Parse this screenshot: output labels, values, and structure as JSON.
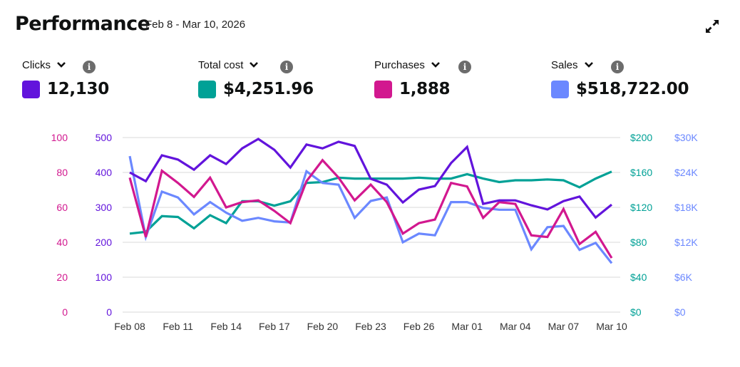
{
  "header": {
    "title": "Performance",
    "date_range": "Feb 8 - Mar 10, 2026"
  },
  "metrics": [
    {
      "label": "Clicks",
      "value": "12,130",
      "color": "#6214DC"
    },
    {
      "label": "Total cost",
      "value": "$4,251.96",
      "color": "#00A196"
    },
    {
      "label": "Purchases",
      "value": "1,888",
      "color": "#D2188F"
    },
    {
      "label": "Sales",
      "value": "$518,722.00",
      "color": "#6B88FF"
    }
  ],
  "icons": {
    "expand": "expand-arrows-icon",
    "dropdown": "chevron-down-icon",
    "info": "info-icon"
  },
  "chart_data": {
    "type": "line",
    "x": [
      "Feb 08",
      "Feb 09",
      "Feb 10",
      "Feb 11",
      "Feb 12",
      "Feb 13",
      "Feb 14",
      "Feb 15",
      "Feb 16",
      "Feb 17",
      "Feb 18",
      "Feb 19",
      "Feb 20",
      "Feb 21",
      "Feb 22",
      "Feb 23",
      "Feb 24",
      "Feb 25",
      "Feb 26",
      "Feb 27",
      "Feb 28",
      "Mar 01",
      "Mar 02",
      "Mar 03",
      "Mar 04",
      "Mar 05",
      "Mar 06",
      "Mar 07",
      "Mar 08",
      "Mar 09",
      "Mar 10"
    ],
    "x_tick_labels": [
      "Feb 08",
      "Feb 11",
      "Feb 14",
      "Feb 17",
      "Feb 20",
      "Feb 23",
      "Feb 26",
      "Mar 01",
      "Mar 04",
      "Mar 07",
      "Mar 10"
    ],
    "grid": true,
    "axes": [
      {
        "side": "left-outer",
        "series": "Purchases",
        "range": [
          0,
          100
        ],
        "ticks": [
          "0",
          "20",
          "40",
          "60",
          "80",
          "100"
        ],
        "color": "#D2188F"
      },
      {
        "side": "left-inner",
        "series": "Clicks",
        "range": [
          0,
          500
        ],
        "ticks": [
          "0",
          "100",
          "200",
          "300",
          "400",
          "500"
        ],
        "color": "#6214DC"
      },
      {
        "side": "right-inner",
        "series": "Total cost",
        "range": [
          0,
          200
        ],
        "ticks": [
          "$0",
          "$40",
          "$80",
          "$120",
          "$160",
          "$200"
        ],
        "color": "#00A196"
      },
      {
        "side": "right-outer",
        "series": "Sales",
        "range": [
          0,
          30000
        ],
        "ticks": [
          "$0",
          "$6K",
          "$12K",
          "$18K",
          "$24K",
          "$30K"
        ],
        "color": "#6B88FF"
      }
    ],
    "series": [
      {
        "name": "Total cost",
        "axis": 2,
        "color": "#00A196",
        "values": [
          90,
          92,
          110,
          109,
          96,
          111,
          102,
          127,
          127,
          122,
          127,
          148,
          149,
          154,
          153,
          153,
          153,
          153,
          154,
          153,
          153,
          158,
          153,
          149,
          151,
          151,
          152,
          151,
          143,
          153,
          161
        ]
      },
      {
        "name": "Sales",
        "axis": 3,
        "color": "#6B88FF",
        "values": [
          26800,
          12900,
          20700,
          19700,
          16800,
          18900,
          17100,
          15700,
          16200,
          15600,
          15400,
          24200,
          22200,
          21900,
          16200,
          19100,
          19700,
          12000,
          13500,
          13200,
          18900,
          18900,
          17900,
          17600,
          17600,
          10800,
          14600,
          14800,
          10700,
          11900,
          8400
        ]
      },
      {
        "name": "Purchases",
        "axis": 0,
        "color": "#D2188F",
        "values": [
          77,
          43,
          81,
          74,
          66,
          77,
          60,
          63,
          64,
          58,
          51,
          75,
          87,
          77,
          64,
          73,
          63,
          45,
          51,
          53,
          74,
          72,
          54,
          63,
          62,
          44,
          43,
          59,
          39,
          46,
          31
        ]
      },
      {
        "name": "Clicks",
        "axis": 1,
        "color": "#6214DC",
        "values": [
          400,
          375,
          449,
          437,
          408,
          449,
          424,
          469,
          496,
          465,
          414,
          480,
          469,
          488,
          476,
          382,
          365,
          314,
          351,
          361,
          427,
          473,
          310,
          320,
          320,
          306,
          294,
          318,
          331,
          271,
          308
        ]
      }
    ]
  }
}
